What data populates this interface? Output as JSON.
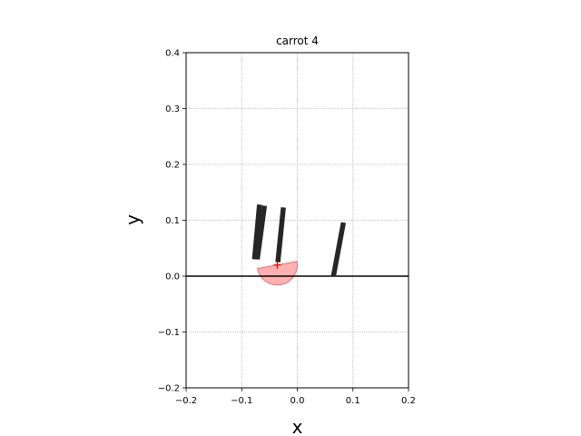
{
  "chart_data": {
    "type": "scatter",
    "title": "carrot 4",
    "xlabel": "x",
    "ylabel": "y",
    "xlim": [
      -0.2,
      0.2
    ],
    "ylim": [
      -0.2,
      0.4
    ],
    "xticks": [
      -0.2,
      -0.1,
      0.0,
      0.1,
      0.2
    ],
    "xtick_labels": [
      "−0.2",
      "−0.1",
      "0.0",
      "0.1",
      "0.2"
    ],
    "yticks": [
      -0.2,
      -0.1,
      0.0,
      0.1,
      0.2,
      0.3,
      0.4
    ],
    "ytick_labels": [
      "−0.2",
      "−0.1",
      "0.0",
      "0.1",
      "0.2",
      "0.3",
      "0.4"
    ],
    "grid": true,
    "ground_line_y": 0.0,
    "rods": [
      {
        "x1": -0.077,
        "y1": 0.03,
        "x2": -0.068,
        "y2": 0.128
      },
      {
        "x1": -0.072,
        "y1": 0.03,
        "x2": -0.059,
        "y2": 0.126
      },
      {
        "x1": -0.035,
        "y1": 0.025,
        "x2": -0.025,
        "y2": 0.123
      },
      {
        "x1": 0.065,
        "y1": 0.0,
        "x2": 0.083,
        "y2": 0.096
      }
    ],
    "semicircle": {
      "cx": -0.036,
      "cy": 0.02,
      "r": 0.036,
      "angle_start_deg": 10
    },
    "center_marker": {
      "x": -0.036,
      "y": 0.02
    },
    "colors": {
      "rod": "#262626",
      "semicircle_fill": "#ff9e9e",
      "semicircle_stroke": "#e77272",
      "marker": "#e00000",
      "ground": "#000000",
      "grid": "#b0b0b0"
    }
  }
}
